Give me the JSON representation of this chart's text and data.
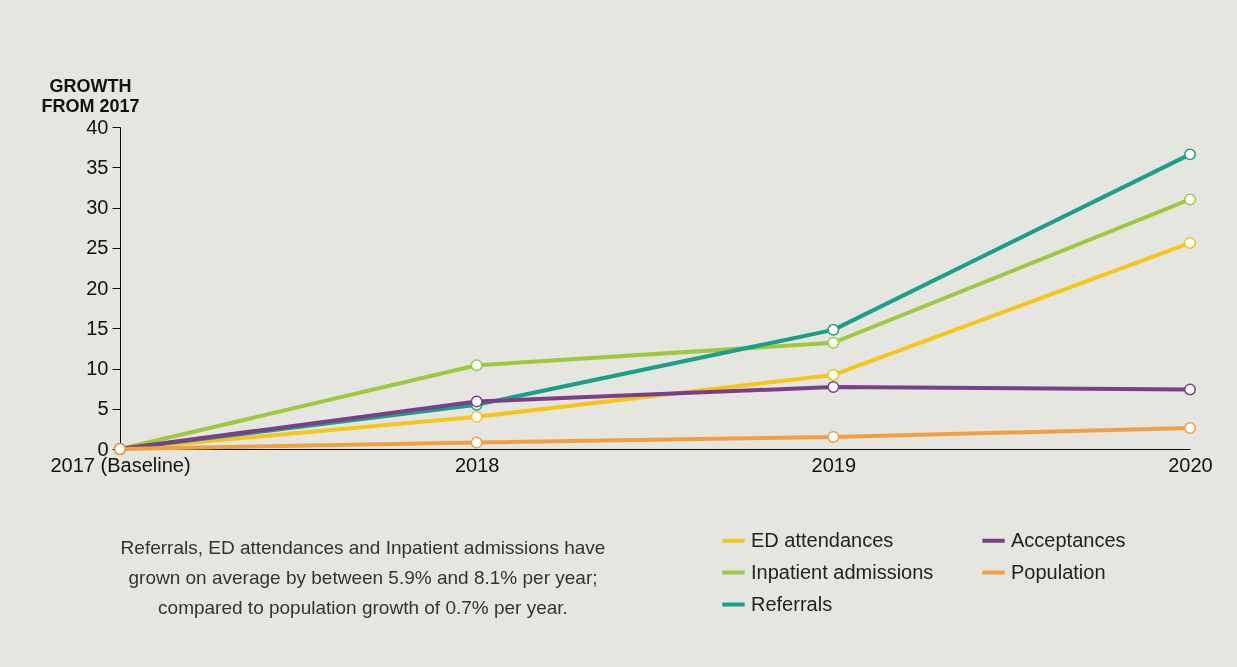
{
  "chart_data": {
    "type": "line",
    "ylabel": "GROWTH FROM 2017",
    "categories": [
      "2017 (Baseline)",
      "2018",
      "2019",
      "2020"
    ],
    "series": [
      {
        "name": "ED attendances",
        "color": "#f5c518",
        "values": [
          0,
          4.0,
          9.2,
          25.6
        ]
      },
      {
        "name": "Inpatient admissions",
        "color": "#9cc93e",
        "values": [
          0,
          10.4,
          13.2,
          31.0
        ]
      },
      {
        "name": "Referrals",
        "color": "#1aa088",
        "values": [
          0,
          5.5,
          14.8,
          36.6
        ]
      },
      {
        "name": "Acceptances",
        "color": "#7b3f8a",
        "values": [
          0,
          5.9,
          7.7,
          7.4
        ]
      },
      {
        "name": "Population",
        "color": "#f0a040",
        "values": [
          0,
          0.8,
          1.5,
          2.6
        ]
      }
    ],
    "ylim": [
      0,
      40
    ],
    "yticks": [
      0,
      5,
      10,
      15,
      20,
      25,
      30,
      35,
      40
    ],
    "grid": false,
    "legend": "bottom right",
    "marker": "circle",
    "line_style": "solid",
    "annotations": [
      "Referrals, ED attendances and Inpatient admissions have grown on average by between 5.9% and 8.1% per year; compared to population growth of 0.7% per year."
    ]
  }
}
